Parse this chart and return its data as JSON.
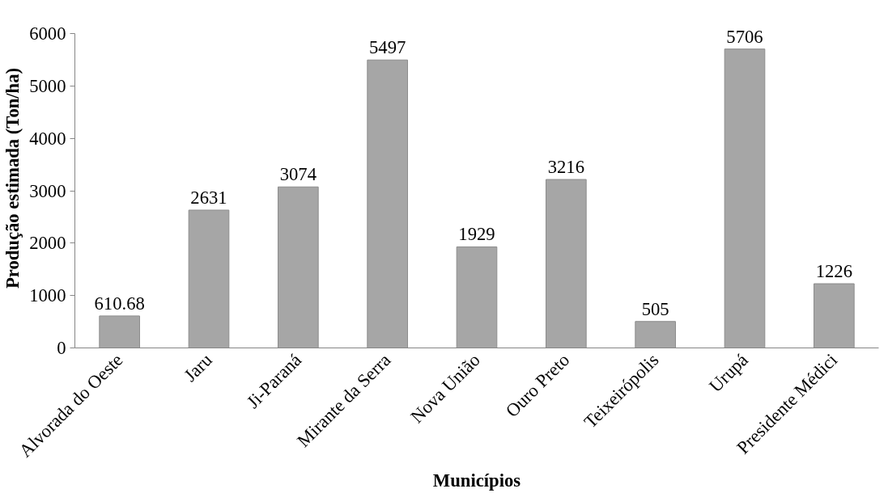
{
  "chart_data": {
    "type": "bar",
    "xlabel": "Municípios",
    "ylabel": "Produção estimada (Ton/ha)",
    "categories": [
      "Alvorada do Oeste",
      "Jaru",
      "Ji-Paraná",
      "Mirante da Serra",
      "Nova União",
      "Ouro Preto",
      "Teixeirópolis",
      "Urupá",
      "Presidente Médici"
    ],
    "values": [
      610.68,
      2631,
      3074,
      5497,
      1929,
      3216,
      505,
      5706,
      1226
    ],
    "color": "#a6a6a6",
    "ylim": [
      0,
      6000
    ],
    "yticks": [
      0,
      1000,
      2000,
      3000,
      4000,
      5000,
      6000
    ],
    "grid": false,
    "data_labels": true
  }
}
